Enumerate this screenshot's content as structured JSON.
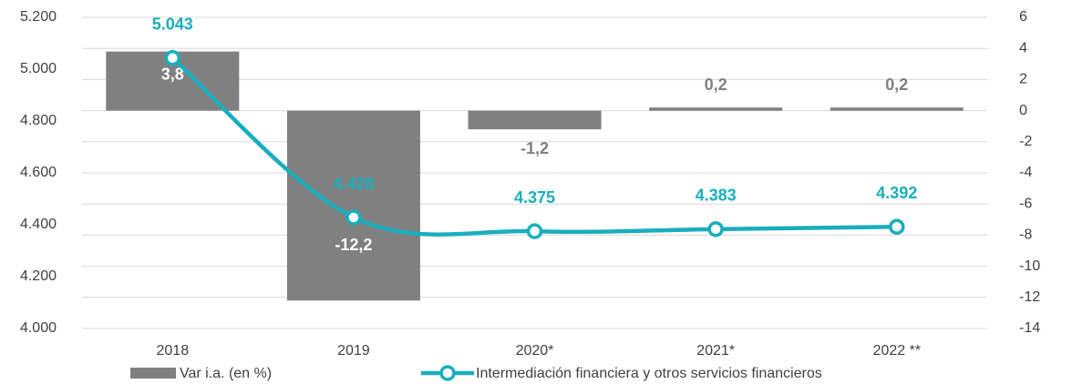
{
  "chart_data": {
    "type": "bar_line",
    "categories": [
      "2018",
      "2019",
      "2020*",
      "2021*",
      "2022 **"
    ],
    "series": [
      {
        "name": "Var i.a. (en %)",
        "type": "bar",
        "axis": "y2",
        "color": "#808080",
        "values": [
          3.8,
          -12.2,
          -1.2,
          0.2,
          0.2
        ],
        "value_labels": [
          "3,8",
          "-12,2",
          "-1,2",
          "0,2",
          "0,2"
        ]
      },
      {
        "name": "Intermediación financiera y otros servicios financieros",
        "type": "line",
        "color": "#1aaebd",
        "values": [
          5043,
          4428,
          4375,
          4383,
          4392
        ],
        "value_labels": [
          "5.043",
          "4.428",
          "4.375",
          "4.383",
          "4.392"
        ]
      }
    ],
    "ylim": [
      4000,
      5200
    ],
    "yticks": [
      {
        "value": 4000,
        "label": "4.000"
      },
      {
        "value": 4200,
        "label": "4.200"
      },
      {
        "value": 4400,
        "label": "4.400"
      },
      {
        "value": 4600,
        "label": "4.600"
      },
      {
        "value": 4800,
        "label": "4.800"
      },
      {
        "value": 5000,
        "label": "5.000"
      },
      {
        "value": 5200,
        "label": "5.200"
      }
    ],
    "y2lim": [
      -14,
      6
    ],
    "y2ticks": [
      -14,
      -12,
      -10,
      -8,
      -6,
      -4,
      -2,
      0,
      2,
      4,
      6
    ],
    "grid": true
  }
}
